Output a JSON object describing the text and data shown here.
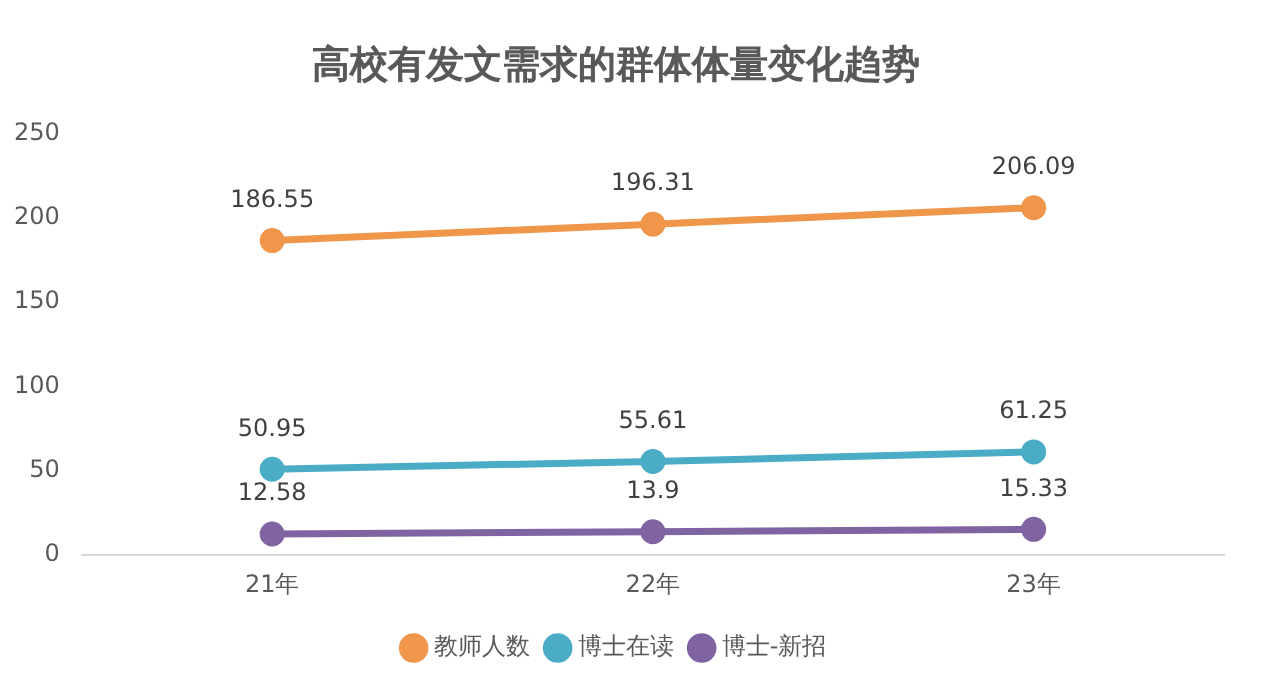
{
  "chart_data": {
    "type": "line",
    "title": "高校有发文需求的群体体量变化趋势",
    "categories": [
      "21年",
      "22年",
      "23年"
    ],
    "series": [
      {
        "name": "教师人数",
        "color": "#f0964a",
        "values": [
          186.55,
          196.31,
          206.09
        ]
      },
      {
        "name": "博士在读",
        "color": "#4bacc6",
        "values": [
          50.95,
          55.61,
          61.25
        ]
      },
      {
        "name": "博士-新招",
        "color": "#8064a2",
        "values": [
          12.58,
          13.9,
          15.33
        ]
      }
    ],
    "ylim": [
      0,
      250
    ],
    "yticks": [
      0,
      50,
      100,
      150,
      200,
      250
    ],
    "grid": false,
    "legend": "bottom",
    "marker": "circle",
    "line_style": "solid",
    "data_labels": true
  }
}
